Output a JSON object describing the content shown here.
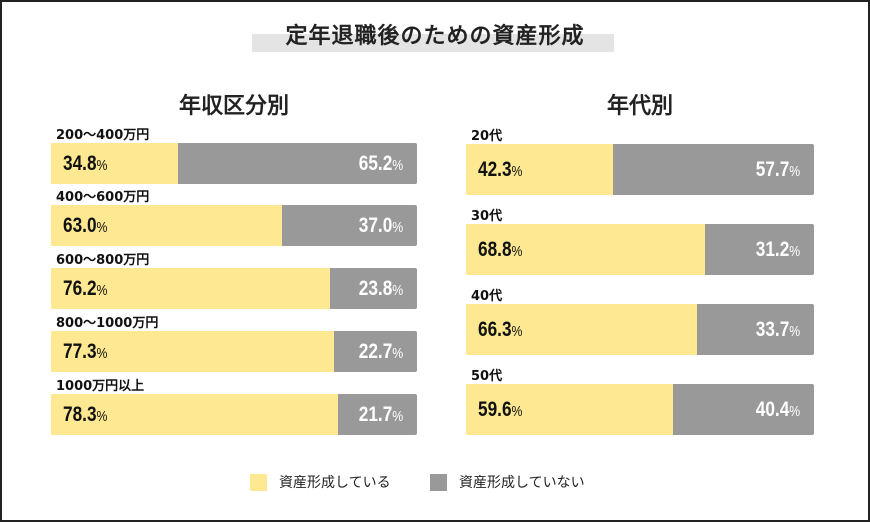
{
  "chart_data": [
    {
      "type": "bar",
      "stacked": true,
      "orientation": "horizontal",
      "title": "定年退職後のための資産形成",
      "subtitle": "年収区分別",
      "categories": [
        "200〜400万円",
        "400〜600万円",
        "600〜800万円",
        "800〜1000万円",
        "1000万円以上"
      ],
      "series": [
        {
          "name": "資産形成している",
          "values": [
            34.8,
            63.0,
            76.2,
            77.3,
            78.3
          ],
          "color": "#fee891"
        },
        {
          "name": "資産形成していない",
          "values": [
            65.2,
            37.0,
            23.8,
            22.7,
            21.7
          ],
          "color": "#999999"
        }
      ],
      "unit": "%",
      "xlim": [
        0,
        100
      ]
    },
    {
      "type": "bar",
      "stacked": true,
      "orientation": "horizontal",
      "subtitle": "年代別",
      "categories": [
        "20代",
        "30代",
        "40代",
        "50代"
      ],
      "series": [
        {
          "name": "資産形成している",
          "values": [
            42.3,
            68.8,
            66.3,
            59.6
          ],
          "color": "#fee891"
        },
        {
          "name": "資産形成していない",
          "values": [
            57.7,
            31.2,
            33.7,
            40.4
          ],
          "color": "#999999"
        }
      ],
      "unit": "%",
      "xlim": [
        0,
        100
      ]
    }
  ],
  "legend": {
    "placement": "bottom",
    "items": [
      {
        "label": "資産形成している",
        "color": "#fee891"
      },
      {
        "label": "資産形成していない",
        "color": "#999999"
      }
    ]
  }
}
